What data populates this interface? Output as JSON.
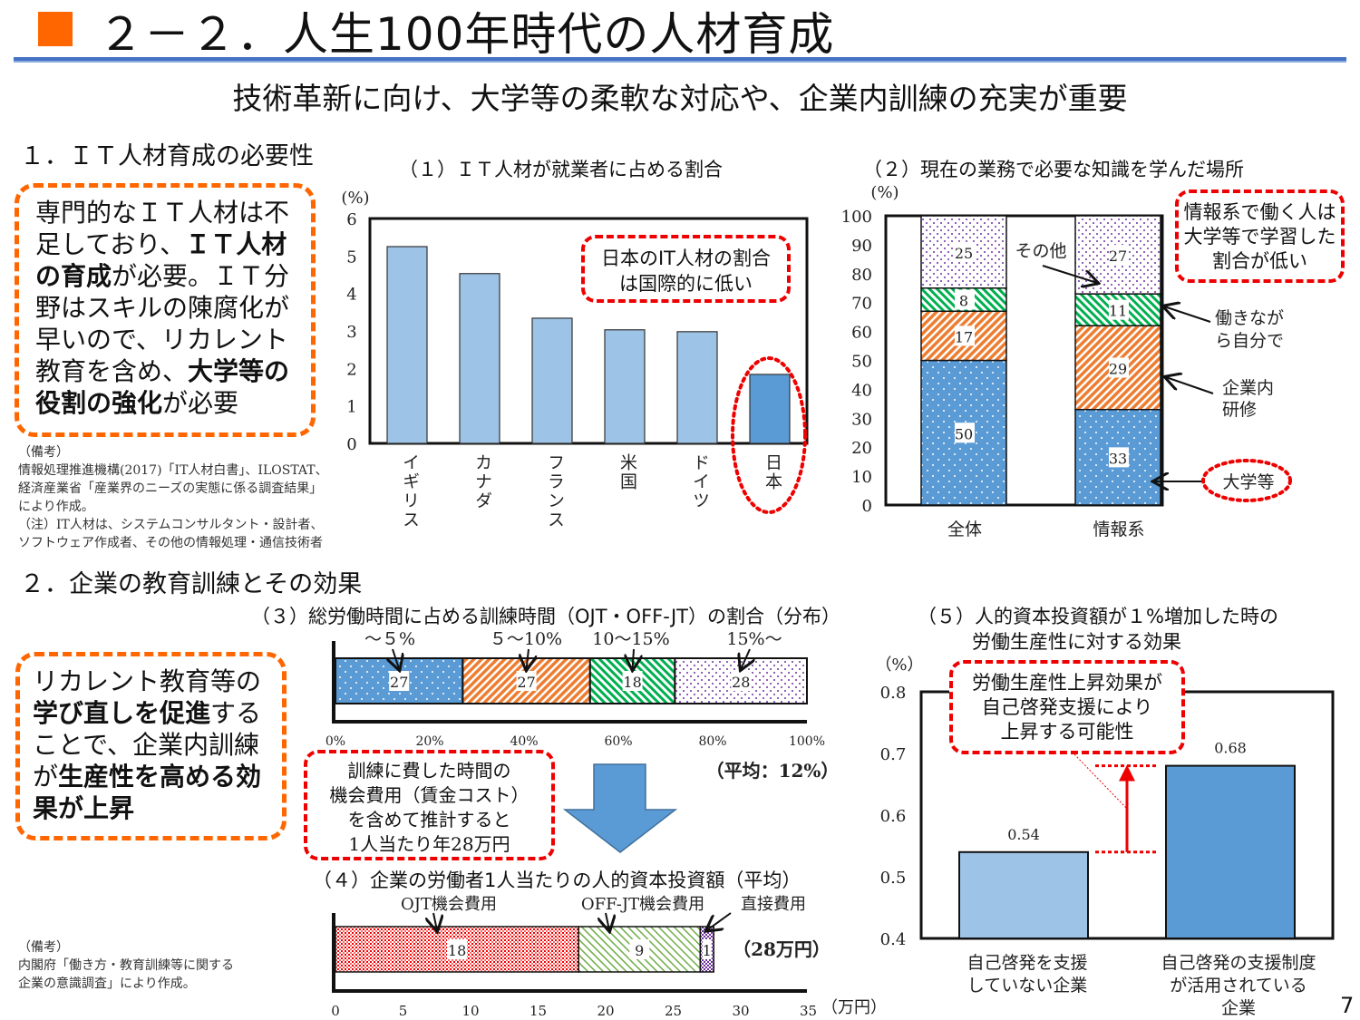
{
  "header": {
    "title": "２－２．人生100年時代の人材育成",
    "subtitle": "技術革新に向け、大学等の柔軟な対応や、企業内訓練の充実が重要",
    "page_number": "7"
  },
  "section1": {
    "heading": "１．ＩＴ人材育成の必要性",
    "summary": [
      {
        "text": "専門的なＩＴ人材は不足しており、",
        "bold": false
      },
      {
        "text": "ＩＴ人材の育成",
        "bold": true
      },
      {
        "text": "が必要。ＩＴ分野はスキルの陳腐化が早いので、リカレント教育を含め、",
        "bold": false
      },
      {
        "text": "大学等の役割の強化",
        "bold": true
      },
      {
        "text": "が必要",
        "bold": false
      }
    ],
    "notes": [
      "（備考）",
      "情報処理推進機構(2017)「IT人材白書」、ILOSTAT、",
      "経済産業省「産業界のニーズの実態に係る調査結果」",
      "により作成。",
      "（注）IT人材は、システムコンサルタント・設計者、",
      "ソフトウェア作成者、その他の情報処理・通信技術者"
    ]
  },
  "section2": {
    "heading": "２．企業の教育訓練とその効果",
    "summary": [
      {
        "text": "リカレント教育等の",
        "bold": false
      },
      {
        "text": "学び直しを促進",
        "bold": true
      },
      {
        "text": "することで、企業内訓練が",
        "bold": false
      },
      {
        "text": "生産性を高める効果が上昇",
        "bold": true
      }
    ],
    "callout": [
      "訓練に費した時間の",
      "機会費用（賃金コスト）",
      "を含めて推計すると",
      "1人当たり年28万円"
    ],
    "notes": [
      "（備考）",
      "内閣府「働き方・教育訓練等に関する",
      "企業の意識調査」により作成。"
    ]
  },
  "chart_data": [
    {
      "type": "bar",
      "title": "（１）ＩＴ人材が就業者に占める割合",
      "ylabel": "(%)",
      "ylim": [
        0,
        6
      ],
      "yticks": [
        "0",
        "1",
        "2",
        "3",
        "4",
        "5",
        "6"
      ],
      "categories": [
        "イギリス",
        "カナダ",
        "フランス",
        "米国",
        "ドイツ",
        "日本"
      ],
      "values": [
        5.25,
        4.53,
        3.34,
        3.03,
        2.98,
        1.84
      ],
      "colors": {
        "default": "#9DC3E6",
        "highlight": "#5B9BD5"
      },
      "callout": "日本のIT人材の割合は国際的に低い",
      "callout_lines": [
        "日本のIT人材の割合",
        "は国際的に低い"
      ]
    },
    {
      "type": "bar",
      "stacked": true,
      "title": "（２）現在の業務で必要な知識を学んだ場所",
      "ylabel": "(%)",
      "ylim": [
        0,
        100
      ],
      "yticks": [
        "0",
        "10",
        "20",
        "30",
        "40",
        "50",
        "60",
        "70",
        "80",
        "90",
        "100"
      ],
      "categories": [
        "全体",
        "情報系"
      ],
      "series": [
        {
          "name": "大学等",
          "values": [
            50,
            33
          ],
          "color": "#5B9BD5"
        },
        {
          "name": "企業内研修",
          "values": [
            17,
            29
          ],
          "color": "#ED7D31"
        },
        {
          "name": "働きながら自分で",
          "values": [
            8,
            11
          ],
          "color": "#00B050"
        },
        {
          "name": "その他",
          "values": [
            25,
            27
          ],
          "color": "#7030A0"
        }
      ],
      "annotation_lines": {
        "other": [
          "その他"
        ],
        "self": [
          "働きなが",
          "ら自分で"
        ],
        "company": [
          "企業内",
          "研修"
        ],
        "univ": [
          "大学等"
        ]
      },
      "callout_lines": [
        "情報系で働く人は",
        "大学等で学習した",
        "割合が低い"
      ]
    },
    {
      "type": "bar",
      "stacked": true,
      "orientation": "horizontal",
      "title": "（３）総労働時間に占める訓練時間（OJT・OFF-JT）の割合（分布）",
      "categories": [
        "～５%",
        "５～10%",
        "10～15%",
        "15%～"
      ],
      "values": [
        27,
        27,
        18,
        28
      ],
      "xticks": [
        "0%",
        "20%",
        "40%",
        "60%",
        "80%",
        "100%"
      ],
      "xlim": [
        0,
        100
      ],
      "average": "（平均：12%）"
    },
    {
      "type": "bar",
      "stacked": true,
      "orientation": "horizontal",
      "title": "（４）企業の労働者1人当たりの人的資本投資額（平均）",
      "categories": [
        "OJT機会費用",
        "OFF-JT機会費用",
        "直接費用"
      ],
      "values": [
        18,
        9,
        1
      ],
      "xticks": [
        "0",
        "5",
        "10",
        "15",
        "20",
        "25",
        "30",
        "35"
      ],
      "xlim": [
        0,
        35
      ],
      "xunit": "（万円）",
      "total": "（28万円）"
    },
    {
      "type": "bar",
      "title_lines": [
        "（５）人的資本投資額が１%増加した時の",
        "労働生産性に対する効果"
      ],
      "ylabel": "（%）",
      "ylim": [
        0.4,
        0.8
      ],
      "yticks": [
        "0.4",
        "0.5",
        "0.6",
        "0.7",
        "0.8"
      ],
      "categories": [
        [
          "自己啓発を支援",
          "していない企業"
        ],
        [
          "自己啓発の支援制度",
          "が活用されている",
          "企業"
        ]
      ],
      "values": [
        0.54,
        0.68
      ],
      "value_labels": [
        "0.54",
        "0.68"
      ],
      "colors": [
        "#9DC3E6",
        "#5B9BD5"
      ],
      "callout_lines": [
        "労働生産性上昇効果が",
        "自己啓発支援により",
        "上昇する可能性"
      ]
    }
  ]
}
